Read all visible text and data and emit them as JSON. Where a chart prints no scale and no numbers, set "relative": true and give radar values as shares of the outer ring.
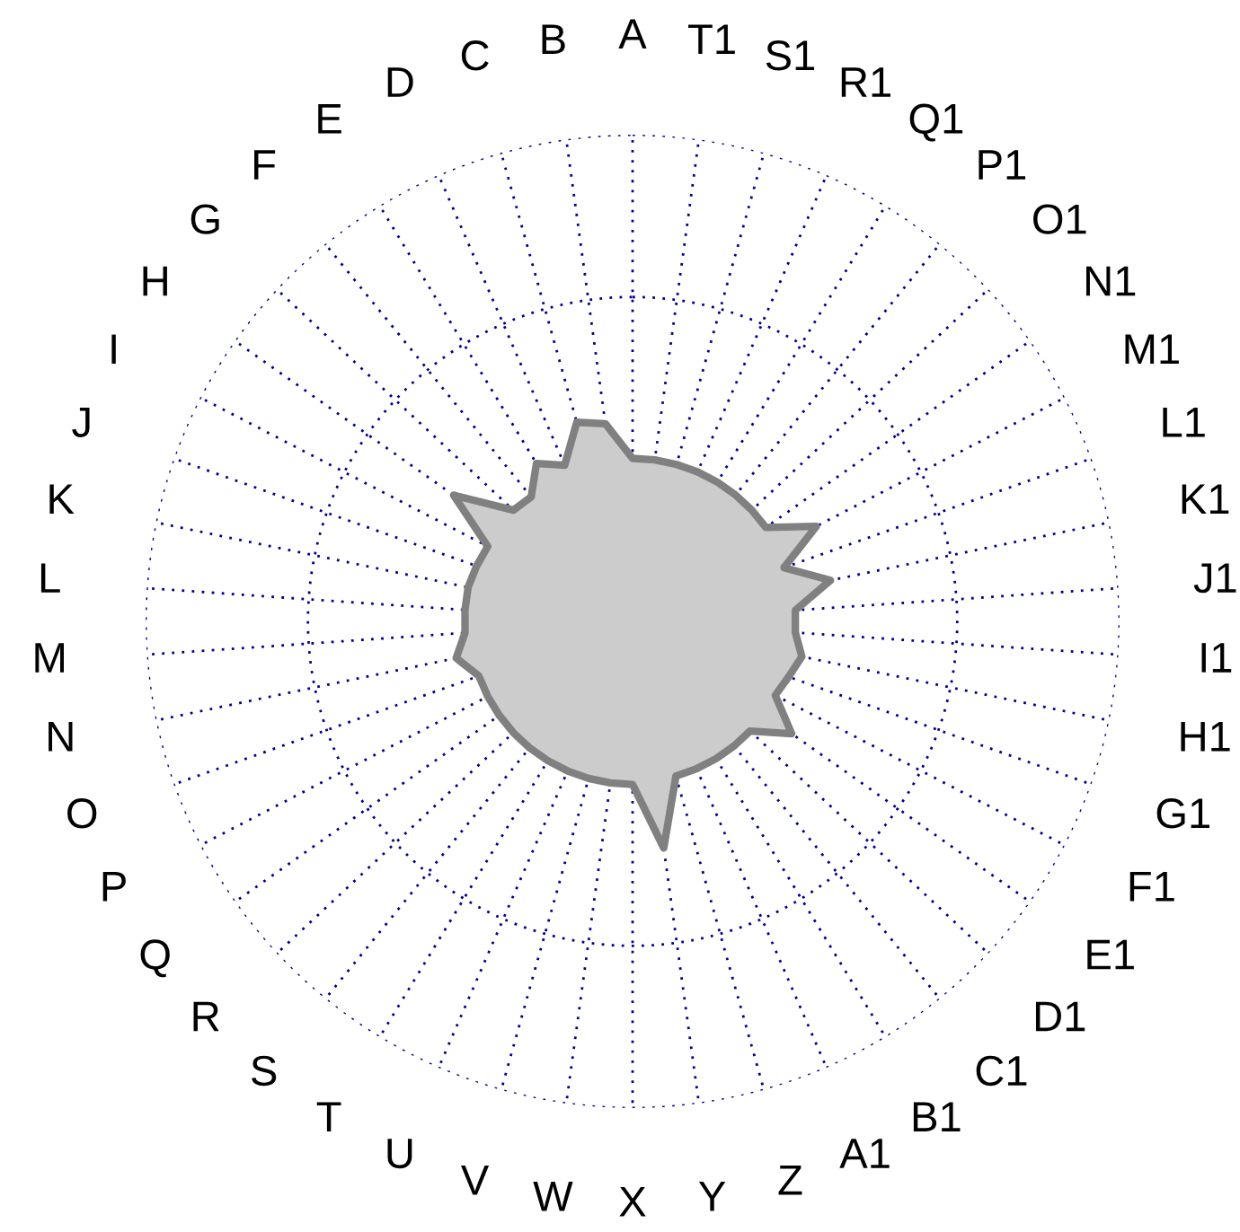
{
  "chart_data": {
    "type": "radar",
    "relative": true,
    "grid": true,
    "categories": [
      "A",
      "T1",
      "S1",
      "R1",
      "Q1",
      "P1",
      "O1",
      "N1",
      "M1",
      "L1",
      "K1",
      "J1",
      "I1",
      "H1",
      "G1",
      "F1",
      "E1",
      "D1",
      "C1",
      "B1",
      "A1",
      "Z",
      "Y",
      "X",
      "W",
      "V",
      "U",
      "T",
      "S",
      "R",
      "Q",
      "P",
      "O",
      "N",
      "M",
      "L",
      "K",
      "J",
      "I",
      "H",
      "G",
      "F",
      "E",
      "D",
      "C",
      "B"
    ],
    "series": [
      {
        "color": "#cccccc",
        "values": [
          0.335,
          0.335,
          0.335,
          0.335,
          0.335,
          0.335,
          0.335,
          0.335,
          0.425,
          0.33,
          0.415,
          0.335,
          0.335,
          0.355,
          0.34,
          0.33,
          0.4,
          0.33,
          0.33,
          0.33,
          0.33,
          0.33,
          0.47,
          0.335,
          0.335,
          0.335,
          0.335,
          0.335,
          0.335,
          0.335,
          0.335,
          0.335,
          0.335,
          0.37,
          0.345,
          0.345,
          0.345,
          0.34,
          0.335,
          0.45,
          0.335,
          0.33,
          0.38,
          0.35,
          0.425,
          0.41
        ]
      }
    ]
  }
}
